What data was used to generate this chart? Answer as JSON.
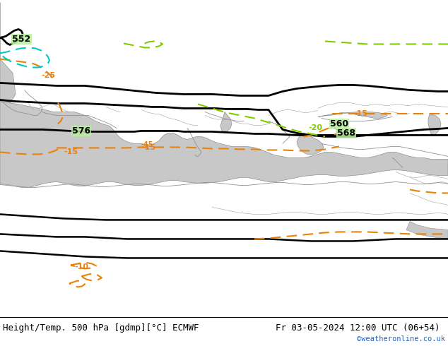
{
  "title_left": "Height/Temp. 500 hPa [gdmp][°C] ECMWF",
  "title_right": "Fr 03-05-2024 12:00 UTC (06+54)",
  "credit": "©weatheronline.co.uk",
  "bg_land": "#b8f0a0",
  "bg_sea": "#c8c8c8",
  "bg_white": "#ffffff",
  "fig_width": 6.34,
  "fig_height": 4.9,
  "dpi": 100,
  "font_size_title": 9.0,
  "font_size_credit": 7.5,
  "black": "#000000",
  "orange": "#e8820a",
  "green_yel": "#80cc00",
  "cyan": "#00c8c8",
  "gray_coast": "#909090"
}
